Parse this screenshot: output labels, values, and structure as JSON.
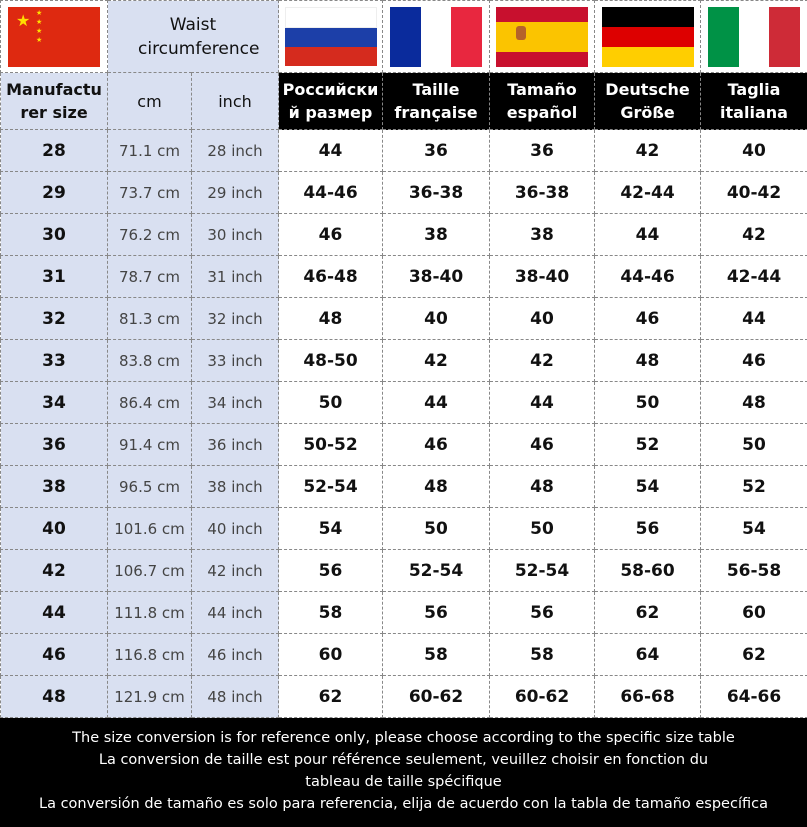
{
  "header": {
    "waist": "Waist circumference",
    "manufacturer": "Manufactu rer size",
    "cm": "cm",
    "inch": "inch",
    "countries": [
      "Российски й размер",
      "Taille française",
      "Tamaño español",
      "Deutsche Größe",
      "Taglia italiana"
    ]
  },
  "flags": [
    "china-flag",
    "russia-flag",
    "france-flag",
    "spain-flag",
    "germany-flag",
    "italy-flag"
  ],
  "rows": [
    [
      "28",
      "71.1 cm",
      "28 inch",
      "44",
      "36",
      "36",
      "42",
      "40"
    ],
    [
      "29",
      "73.7 cm",
      "29 inch",
      "44-46",
      "36-38",
      "36-38",
      "42-44",
      "40-42"
    ],
    [
      "30",
      "76.2 cm",
      "30 inch",
      "46",
      "38",
      "38",
      "44",
      "42"
    ],
    [
      "31",
      "78.7 cm",
      "31 inch",
      "46-48",
      "38-40",
      "38-40",
      "44-46",
      "42-44"
    ],
    [
      "32",
      "81.3 cm",
      "32 inch",
      "48",
      "40",
      "40",
      "46",
      "44"
    ],
    [
      "33",
      "83.8 cm",
      "33 inch",
      "48-50",
      "42",
      "42",
      "48",
      "46"
    ],
    [
      "34",
      "86.4 cm",
      "34 inch",
      "50",
      "44",
      "44",
      "50",
      "48"
    ],
    [
      "36",
      "91.4 cm",
      "36 inch",
      "50-52",
      "46",
      "46",
      "52",
      "50"
    ],
    [
      "38",
      "96.5 cm",
      "38 inch",
      "52-54",
      "48",
      "48",
      "54",
      "52"
    ],
    [
      "40",
      "101.6 cm",
      "40 inch",
      "54",
      "50",
      "50",
      "56",
      "54"
    ],
    [
      "42",
      "106.7 cm",
      "42 inch",
      "56",
      "52-54",
      "52-54",
      "58-60",
      "56-58"
    ],
    [
      "44",
      "111.8 cm",
      "44 inch",
      "58",
      "56",
      "56",
      "62",
      "60"
    ],
    [
      "46",
      "116.8 cm",
      "46 inch",
      "60",
      "58",
      "58",
      "64",
      "62"
    ],
    [
      "48",
      "121.9 cm",
      "48 inch",
      "62",
      "60-62",
      "60-62",
      "66-68",
      "64-66"
    ]
  ],
  "footer": [
    "The size conversion is for reference only, please choose according to the specific size table",
    "La conversion de taille est pour référence seulement, veuillez choisir en fonction du tableau de taille spécifique",
    "La conversión de tamaño es solo para referencia, elija de acuerdo con la tabla de tamaño específica"
  ]
}
